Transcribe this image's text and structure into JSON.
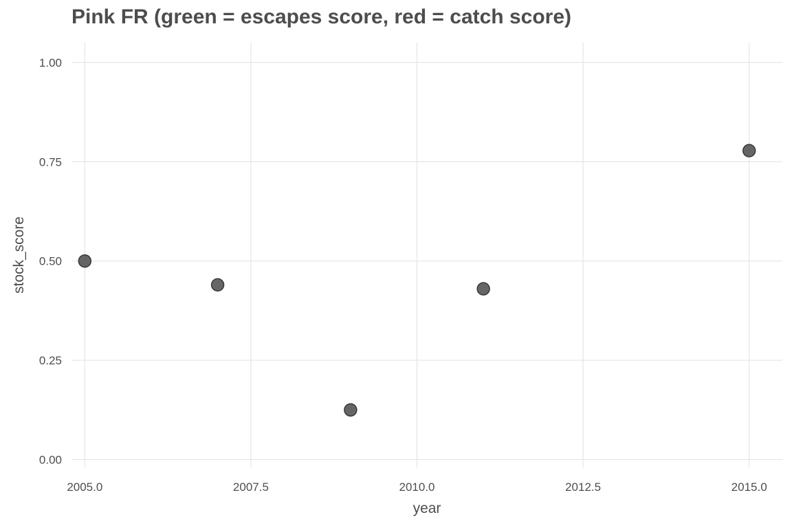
{
  "chart_data": {
    "type": "scatter",
    "title": "Pink FR (green = escapes score, red = catch score)",
    "xlabel": "year",
    "ylabel": "stock_score",
    "xlim": [
      2004.8,
      2015.5
    ],
    "ylim": [
      -0.02,
      1.05
    ],
    "x_ticks": [
      2005.0,
      2007.5,
      2010.0,
      2012.5,
      2015.0
    ],
    "x_tick_labels": [
      "2005.0",
      "2007.5",
      "2010.0",
      "2012.5",
      "2015.0"
    ],
    "y_ticks": [
      0.0,
      0.25,
      0.5,
      0.75,
      1.0
    ],
    "y_tick_labels": [
      "0.00",
      "0.25",
      "0.50",
      "0.75",
      "1.00"
    ],
    "grid": true,
    "points": [
      {
        "x": 2005,
        "y": 0.5
      },
      {
        "x": 2007,
        "y": 0.44
      },
      {
        "x": 2009,
        "y": 0.125
      },
      {
        "x": 2011,
        "y": 0.43
      },
      {
        "x": 2015,
        "y": 0.778
      }
    ],
    "point_color": "#555555"
  }
}
